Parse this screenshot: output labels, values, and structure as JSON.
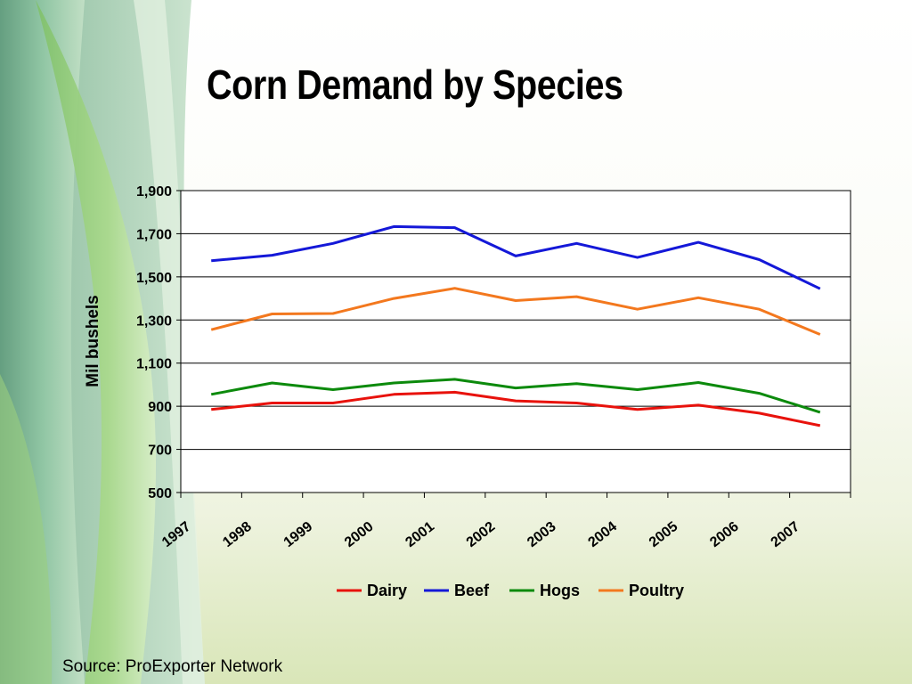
{
  "slide": {
    "title": "Corn Demand by Species",
    "source": "Source: ProExporter Network"
  },
  "chart_data": {
    "type": "line",
    "title": "Corn Demand by Species",
    "xlabel": "",
    "ylabel": "Mil bushels",
    "categories": [
      "1997",
      "1998",
      "1999",
      "2000",
      "2001",
      "2002",
      "2003",
      "2004",
      "2005",
      "2006",
      "2007"
    ],
    "ylim": [
      500,
      1900
    ],
    "yticks": [
      500,
      700,
      900,
      1100,
      1300,
      1500,
      1700,
      1900
    ],
    "ytick_labels": [
      "500",
      "700",
      "900",
      "1,100",
      "1,300",
      "1,500",
      "1,700",
      "1,900"
    ],
    "grid": "horizontal",
    "legend": "bottom",
    "series": [
      {
        "name": "Dairy",
        "color": "#e8120c",
        "values": [
          885,
          915,
          915,
          955,
          965,
          925,
          915,
          885,
          905,
          868,
          810
        ]
      },
      {
        "name": "Beef",
        "color": "#1418d8",
        "values": [
          1575,
          1600,
          1655,
          1733,
          1728,
          1597,
          1655,
          1590,
          1660,
          1580,
          1445
        ]
      },
      {
        "name": "Hogs",
        "color": "#0c8a0c",
        "values": [
          955,
          1008,
          977,
          1008,
          1025,
          985,
          1005,
          977,
          1010,
          960,
          872
        ]
      },
      {
        "name": "Poultry",
        "color": "#f3781e",
        "values": [
          1255,
          1328,
          1330,
          1400,
          1447,
          1390,
          1408,
          1350,
          1403,
          1350,
          1233
        ]
      }
    ]
  }
}
